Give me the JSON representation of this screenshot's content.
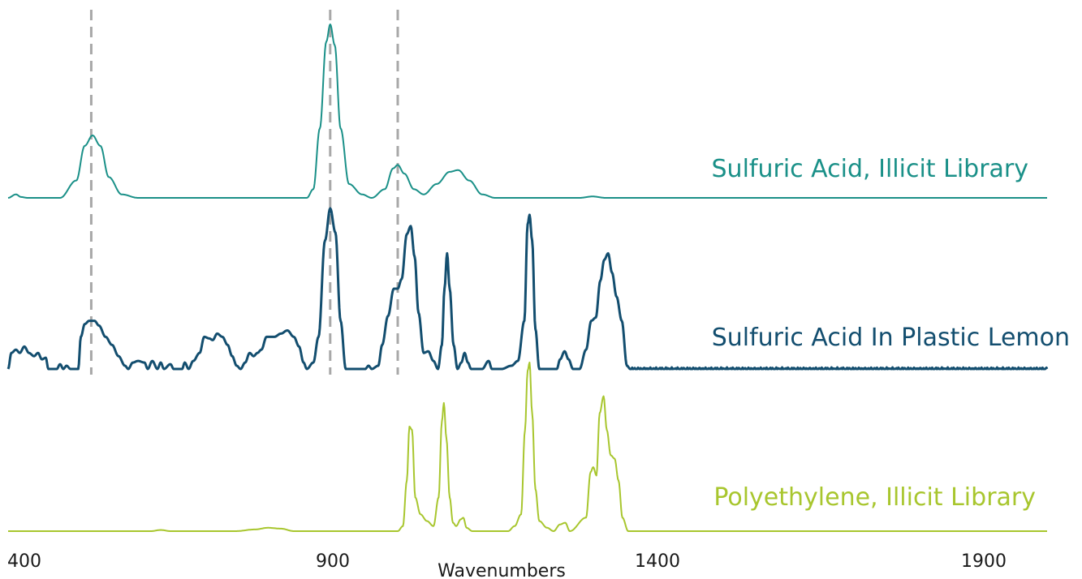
{
  "chart_data": {
    "type": "line",
    "title": "",
    "xlabel": "Wavenumbers",
    "ylabel": "",
    "xlim": [
      400,
      2000
    ],
    "x_ticks": [
      {
        "value": 400,
        "label": "400"
      },
      {
        "value": 900,
        "label": "900"
      },
      {
        "value": 1400,
        "label": "1400"
      },
      {
        "value": 1900,
        "label": "1900"
      }
    ],
    "reference_lines": [
      528,
      896,
      1000
    ],
    "grid": false,
    "legend": "labels beside each trace",
    "series": [
      {
        "name": "Sulfuric Acid, Illicit Library",
        "color": "#1a9088",
        "stroke_width": 2,
        "points": [
          [
            400,
            0
          ],
          [
            412,
            0.02
          ],
          [
            420,
            0.005
          ],
          [
            430,
            0
          ],
          [
            480,
            0
          ],
          [
            505,
            0.1
          ],
          [
            518,
            0.3
          ],
          [
            530,
            0.36
          ],
          [
            542,
            0.3
          ],
          [
            555,
            0.12
          ],
          [
            575,
            0.02
          ],
          [
            600,
            0
          ],
          [
            860,
            0
          ],
          [
            870,
            0.05
          ],
          [
            880,
            0.4
          ],
          [
            890,
            0.9
          ],
          [
            896,
            1.0
          ],
          [
            903,
            0.88
          ],
          [
            912,
            0.4
          ],
          [
            925,
            0.08
          ],
          [
            945,
            0.02
          ],
          [
            960,
            0
          ],
          [
            980,
            0.05
          ],
          [
            993,
            0.17
          ],
          [
            1000,
            0.19
          ],
          [
            1010,
            0.14
          ],
          [
            1025,
            0.05
          ],
          [
            1040,
            0.02
          ],
          [
            1060,
            0.08
          ],
          [
            1080,
            0.15
          ],
          [
            1093,
            0.16
          ],
          [
            1110,
            0.1
          ],
          [
            1130,
            0.02
          ],
          [
            1150,
            0
          ],
          [
            1280,
            0
          ],
          [
            1300,
            0.008
          ],
          [
            1320,
            0
          ],
          [
            2000,
            0
          ]
        ]
      },
      {
        "name": "Sulfuric Acid In Plastic Lemon",
        "color": "#134e6f",
        "stroke_width": 3,
        "points": [
          [
            400,
            0
          ],
          [
            405,
            0.1
          ],
          [
            412,
            0.12
          ],
          [
            418,
            0.1
          ],
          [
            425,
            0.14
          ],
          [
            432,
            0.1
          ],
          [
            440,
            0.08
          ],
          [
            446,
            0.1
          ],
          [
            452,
            0.06
          ],
          [
            458,
            0.07
          ],
          [
            462,
            0
          ],
          [
            475,
            0
          ],
          [
            480,
            0.03
          ],
          [
            485,
            0
          ],
          [
            490,
            0.02
          ],
          [
            496,
            0
          ],
          [
            508,
            0
          ],
          [
            512,
            0.2
          ],
          [
            518,
            0.28
          ],
          [
            525,
            0.3
          ],
          [
            533,
            0.3
          ],
          [
            540,
            0.27
          ],
          [
            550,
            0.2
          ],
          [
            560,
            0.15
          ],
          [
            570,
            0.08
          ],
          [
            580,
            0.02
          ],
          [
            585,
            0
          ],
          [
            592,
            0.04
          ],
          [
            600,
            0.05
          ],
          [
            610,
            0.04
          ],
          [
            615,
            0
          ],
          [
            622,
            0.05
          ],
          [
            630,
            0
          ],
          [
            635,
            0.04
          ],
          [
            640,
            0
          ],
          [
            650,
            0.03
          ],
          [
            655,
            0
          ],
          [
            668,
            0
          ],
          [
            672,
            0.04
          ],
          [
            678,
            0
          ],
          [
            685,
            0.05
          ],
          [
            695,
            0.1
          ],
          [
            702,
            0.2
          ],
          [
            710,
            0.19
          ],
          [
            715,
            0.18
          ],
          [
            722,
            0.22
          ],
          [
            730,
            0.2
          ],
          [
            738,
            0.15
          ],
          [
            745,
            0.08
          ],
          [
            752,
            0.02
          ],
          [
            758,
            0
          ],
          [
            765,
            0.04
          ],
          [
            772,
            0.1
          ],
          [
            778,
            0.08
          ],
          [
            784,
            0.1
          ],
          [
            790,
            0.12
          ],
          [
            798,
            0.2
          ],
          [
            810,
            0.2
          ],
          [
            820,
            0.22
          ],
          [
            830,
            0.24
          ],
          [
            840,
            0.2
          ],
          [
            848,
            0.14
          ],
          [
            855,
            0.04
          ],
          [
            860,
            0
          ],
          [
            870,
            0.04
          ],
          [
            878,
            0.2
          ],
          [
            888,
            0.8
          ],
          [
            896,
            1.0
          ],
          [
            904,
            0.85
          ],
          [
            912,
            0.3
          ],
          [
            920,
            0
          ],
          [
            950,
            0
          ],
          [
            955,
            0.02
          ],
          [
            960,
            0
          ],
          [
            970,
            0.02
          ],
          [
            976,
            0.15
          ],
          [
            985,
            0.33
          ],
          [
            994,
            0.5
          ],
          [
            1000,
            0.5
          ],
          [
            1006,
            0.56
          ],
          [
            1014,
            0.84
          ],
          [
            1020,
            0.89
          ],
          [
            1026,
            0.7
          ],
          [
            1032,
            0.35
          ],
          [
            1040,
            0.1
          ],
          [
            1047,
            0.11
          ],
          [
            1055,
            0.05
          ],
          [
            1062,
            0
          ],
          [
            1068,
            0.15
          ],
          [
            1072,
            0.5
          ],
          [
            1076,
            0.72
          ],
          [
            1080,
            0.5
          ],
          [
            1086,
            0.15
          ],
          [
            1092,
            0
          ],
          [
            1098,
            0.04
          ],
          [
            1103,
            0.1
          ],
          [
            1108,
            0.04
          ],
          [
            1113,
            0
          ],
          [
            1130,
            0
          ],
          [
            1140,
            0.05
          ],
          [
            1145,
            0
          ],
          [
            1160,
            0
          ],
          [
            1175,
            0.02
          ],
          [
            1185,
            0.05
          ],
          [
            1195,
            0.3
          ],
          [
            1200,
            0.9
          ],
          [
            1203,
            0.96
          ],
          [
            1207,
            0.8
          ],
          [
            1212,
            0.25
          ],
          [
            1218,
            0
          ],
          [
            1245,
            0
          ],
          [
            1250,
            0.06
          ],
          [
            1257,
            0.11
          ],
          [
            1263,
            0.06
          ],
          [
            1270,
            0
          ],
          [
            1280,
            0
          ],
          [
            1290,
            0.12
          ],
          [
            1298,
            0.3
          ],
          [
            1305,
            0.32
          ],
          [
            1312,
            0.55
          ],
          [
            1318,
            0.68
          ],
          [
            1324,
            0.72
          ],
          [
            1330,
            0.6
          ],
          [
            1337,
            0.45
          ],
          [
            1345,
            0.3
          ],
          [
            1353,
            0.02
          ],
          [
            1358,
            0
          ],
          [
            2000,
            0
          ]
        ],
        "noise": 0.02
      },
      {
        "name": "Polyethylene, Illicit Library",
        "color": "#a8c62e",
        "stroke_width": 2,
        "points": [
          [
            400,
            0
          ],
          [
            620,
            0
          ],
          [
            635,
            0.007
          ],
          [
            650,
            0
          ],
          [
            750,
            0
          ],
          [
            780,
            0.01
          ],
          [
            800,
            0.02
          ],
          [
            820,
            0.015
          ],
          [
            840,
            0
          ],
          [
            1000,
            0
          ],
          [
            1008,
            0.03
          ],
          [
            1014,
            0.3
          ],
          [
            1018,
            0.62
          ],
          [
            1022,
            0.6
          ],
          [
            1027,
            0.2
          ],
          [
            1035,
            0.1
          ],
          [
            1045,
            0.06
          ],
          [
            1055,
            0.03
          ],
          [
            1063,
            0.2
          ],
          [
            1068,
            0.65
          ],
          [
            1071,
            0.76
          ],
          [
            1075,
            0.55
          ],
          [
            1080,
            0.2
          ],
          [
            1085,
            0.05
          ],
          [
            1090,
            0.03
          ],
          [
            1097,
            0.07
          ],
          [
            1101,
            0.08
          ],
          [
            1106,
            0.02
          ],
          [
            1115,
            0
          ],
          [
            1170,
            0
          ],
          [
            1180,
            0.03
          ],
          [
            1190,
            0.1
          ],
          [
            1196,
            0.6
          ],
          [
            1200,
            0.95
          ],
          [
            1203,
            1.0
          ],
          [
            1207,
            0.7
          ],
          [
            1212,
            0.25
          ],
          [
            1218,
            0.06
          ],
          [
            1230,
            0.02
          ],
          [
            1240,
            0
          ],
          [
            1250,
            0.04
          ],
          [
            1258,
            0.05
          ],
          [
            1265,
            0
          ],
          [
            1290,
            0.08
          ],
          [
            1297,
            0.35
          ],
          [
            1301,
            0.38
          ],
          [
            1306,
            0.33
          ],
          [
            1311,
            0.7
          ],
          [
            1317,
            0.8
          ],
          [
            1322,
            0.6
          ],
          [
            1328,
            0.45
          ],
          [
            1334,
            0.43
          ],
          [
            1340,
            0.3
          ],
          [
            1346,
            0.08
          ],
          [
            1355,
            0
          ],
          [
            2000,
            0
          ]
        ]
      }
    ]
  }
}
